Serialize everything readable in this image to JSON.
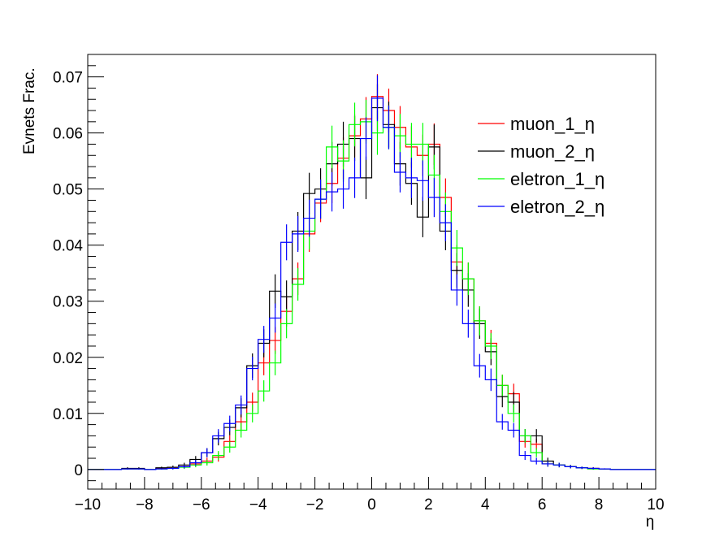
{
  "chart_data": {
    "type": "histogram",
    "xlabel": "η",
    "ylabel": "Evnets Frac.",
    "xlim": [
      -10,
      10
    ],
    "ylim": [
      -0.0035,
      0.074
    ],
    "x_ticks": [
      -10,
      -8,
      -6,
      -4,
      -2,
      0,
      2,
      4,
      6,
      8,
      10
    ],
    "x_tick_labels": [
      "−10",
      "−8",
      "−6",
      "−4",
      "−2",
      "0",
      "2",
      "4",
      "6",
      "8",
      "10"
    ],
    "y_ticks": [
      0,
      0.01,
      0.02,
      0.03,
      0.04,
      0.05,
      0.06,
      0.07
    ],
    "y_tick_labels": [
      "0",
      "0.01",
      "0.02",
      "0.03",
      "0.04",
      "0.05",
      "0.06",
      "0.07"
    ],
    "grid": false,
    "legend_position": "top-right",
    "bin_edges": [
      -8.8,
      -8.4,
      -8.0,
      -7.6,
      -7.2,
      -6.8,
      -6.4,
      -6.0,
      -5.6,
      -5.2,
      -4.8,
      -4.4,
      -4.0,
      -3.6,
      -3.2,
      -2.8,
      -2.4,
      -2.0,
      -1.6,
      -1.2,
      -0.8,
      -0.4,
      0.0,
      0.4,
      0.8,
      1.2,
      1.6,
      2.0,
      2.4,
      2.8,
      3.2,
      3.6,
      4.0,
      4.4,
      4.8,
      5.2,
      5.6,
      6.0,
      6.4,
      6.8,
      7.2,
      7.6,
      8.0,
      8.4,
      8.8
    ],
    "series": [
      {
        "name": "muon_1_η",
        "color": "#ff0000",
        "values": [
          0.0001,
          0.0001,
          0,
          0.0002,
          0.0003,
          0.0005,
          0.001,
          0.0015,
          0.0022,
          0.005,
          0.0085,
          0.012,
          0.019,
          0.023,
          0.0282,
          0.034,
          0.042,
          0.0475,
          0.051,
          0.0555,
          0.0595,
          0.0625,
          0.0665,
          0.064,
          0.061,
          0.0575,
          0.056,
          0.058,
          0.0485,
          0.037,
          0.034,
          0.0265,
          0.0225,
          0.015,
          0.0135,
          0.005,
          0.0045,
          0.001,
          0.0008,
          0.0005,
          0.0003,
          0.0002,
          0.0001,
          0
        ],
        "errors": [
          0.0001,
          0.0001,
          0,
          0.0002,
          0.0002,
          0.0003,
          0.0005,
          0.0006,
          0.0008,
          0.0011,
          0.0014,
          0.0017,
          0.0022,
          0.0024,
          0.0027,
          0.0029,
          0.0032,
          0.0034,
          0.0035,
          0.0037,
          0.0038,
          0.0039,
          0.004,
          0.0039,
          0.0038,
          0.0037,
          0.0037,
          0.0037,
          0.0034,
          0.003,
          0.0029,
          0.0026,
          0.0024,
          0.0019,
          0.0018,
          0.0011,
          0.001,
          0.0005,
          0.0004,
          0.0003,
          0.0002,
          0.0002,
          0.0001,
          0
        ]
      },
      {
        "name": "muon_2_η",
        "color": "#000000",
        "values": [
          0.0002,
          0.0002,
          0,
          0.0003,
          0.0004,
          0.0008,
          0.0018,
          0.003,
          0.0055,
          0.0075,
          0.011,
          0.0185,
          0.0225,
          0.0318,
          0.0308,
          0.0425,
          0.0492,
          0.05,
          0.0545,
          0.058,
          0.059,
          0.052,
          0.0645,
          0.0615,
          0.0545,
          0.051,
          0.045,
          0.0575,
          0.0425,
          0.0355,
          0.032,
          0.026,
          0.021,
          0.013,
          0.012,
          0.006,
          0.006,
          0.0015,
          0.0008,
          0.0005,
          0.0003,
          0.0002,
          0.0001,
          0
        ],
        "errors": [
          0.0002,
          0.0002,
          0,
          0.0002,
          0.0003,
          0.0004,
          0.0006,
          0.0008,
          0.0012,
          0.0014,
          0.0017,
          0.0022,
          0.0025,
          0.003,
          0.0029,
          0.0034,
          0.0037,
          0.0037,
          0.0039,
          0.004,
          0.004,
          0.0038,
          0.0042,
          0.0041,
          0.0039,
          0.0038,
          0.0036,
          0.004,
          0.0034,
          0.0031,
          0.003,
          0.0027,
          0.0024,
          0.0019,
          0.0018,
          0.0012,
          0.0012,
          0.0006,
          0.0004,
          0.0003,
          0.0002,
          0.0002,
          0.0001,
          0
        ]
      },
      {
        "name": "eletron_1_η",
        "color": "#00ff00",
        "values": [
          0.0001,
          0.0001,
          0,
          0.0001,
          0.0002,
          0.0004,
          0.0008,
          0.0012,
          0.0025,
          0.004,
          0.007,
          0.01,
          0.014,
          0.019,
          0.026,
          0.033,
          0.0425,
          0.0482,
          0.0575,
          0.055,
          0.0615,
          0.062,
          0.06,
          0.061,
          0.0595,
          0.058,
          0.058,
          0.0525,
          0.046,
          0.0395,
          0.034,
          0.0265,
          0.022,
          0.015,
          0.01,
          0.006,
          0.003,
          0.001,
          0.0008,
          0.0005,
          0.0003,
          0.0001,
          0.0001,
          0
        ],
        "errors": [
          0.0001,
          0.0001,
          0,
          0.0001,
          0.0002,
          0.0003,
          0.0004,
          0.0005,
          0.0008,
          0.001,
          0.0013,
          0.0016,
          0.0019,
          0.0022,
          0.0026,
          0.0029,
          0.0033,
          0.0035,
          0.0038,
          0.0037,
          0.0039,
          0.0039,
          0.0039,
          0.0039,
          0.0039,
          0.0038,
          0.0038,
          0.0036,
          0.0034,
          0.0032,
          0.0029,
          0.0026,
          0.0023,
          0.0019,
          0.0016,
          0.0012,
          0.0008,
          0.0005,
          0.0004,
          0.0003,
          0.0002,
          0.0001,
          0.0001,
          0
        ]
      },
      {
        "name": "eletron_2_η",
        "color": "#0000ff",
        "values": [
          0.0001,
          0.0001,
          0,
          0.0001,
          0.0002,
          0.0005,
          0.0012,
          0.003,
          0.006,
          0.0082,
          0.0115,
          0.018,
          0.0232,
          0.027,
          0.0405,
          0.042,
          0.0448,
          0.0482,
          0.0495,
          0.05,
          0.052,
          0.059,
          0.0662,
          0.061,
          0.053,
          0.052,
          0.0515,
          0.0485,
          0.044,
          0.032,
          0.026,
          0.0185,
          0.016,
          0.0085,
          0.007,
          0.0025,
          0.0015,
          0.001,
          0.0008,
          0.0005,
          0.0003,
          0.0002,
          0.0001,
          0
        ],
        "errors": [
          0.0001,
          0.0001,
          0,
          0.0001,
          0.0002,
          0.0003,
          0.0005,
          0.0008,
          0.0012,
          0.0014,
          0.0017,
          0.0021,
          0.0024,
          0.0026,
          0.0032,
          0.0032,
          0.0033,
          0.0035,
          0.0035,
          0.0035,
          0.0036,
          0.0038,
          0.0041,
          0.0039,
          0.0036,
          0.0036,
          0.0036,
          0.0035,
          0.0033,
          0.0028,
          0.0025,
          0.0021,
          0.002,
          0.0014,
          0.0013,
          0.0008,
          0.0006,
          0.0005,
          0.0004,
          0.0003,
          0.0002,
          0.0002,
          0.0001,
          0
        ]
      }
    ]
  }
}
